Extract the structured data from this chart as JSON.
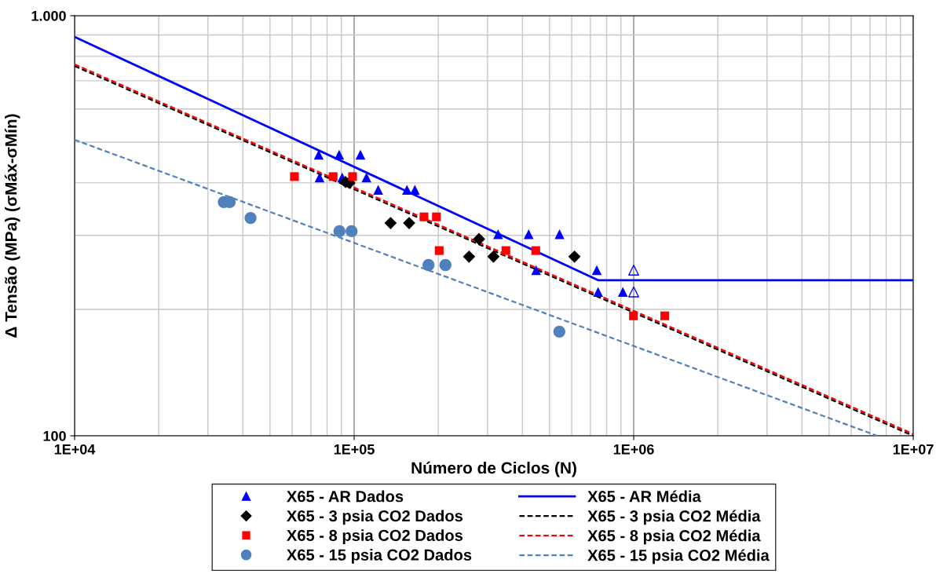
{
  "chart_data": {
    "type": "scatter",
    "xlabel": "Número de Ciclos (N)",
    "ylabel": "Δ Tensão (MPa) (σMáx-σMín)",
    "log": "xy",
    "grid": true,
    "legend": "bottom",
    "xlim": [
      10000,
      10000000
    ],
    "xticks": [
      {
        "value": 10000,
        "label": "1E+04"
      },
      {
        "value": 100000,
        "label": "1E+05"
      },
      {
        "value": 1000000,
        "label": "1E+06"
      },
      {
        "value": 10000000,
        "label": "1E+07"
      }
    ],
    "ylim": [
      100,
      1000
    ],
    "yticks": [
      {
        "value": 100,
        "label": "100"
      },
      {
        "value": 1000,
        "label": "1.000"
      }
    ],
    "series": [
      {
        "name": "X65 - AR Dados",
        "type": "scatter",
        "marker": "triangle",
        "color": "#0000ff",
        "x": [
          74700,
          88400,
          105300,
          75200,
          90600,
          110700,
          121900,
          154500,
          164900,
          327300,
          421000,
          543000,
          447500,
          737800,
          746000,
          914700
        ],
        "values": [
          467,
          467,
          467,
          412,
          412,
          412,
          385,
          385,
          385,
          302,
          302,
          302,
          248,
          248,
          220,
          220
        ]
      },
      {
        "name": "X65 - 3 psia CO2 Dados",
        "type": "scatter",
        "marker": "diamond",
        "color": "#000000",
        "x": [
          93100,
          96200,
          135000,
          157300,
          279700,
          257700,
          315000,
          614000
        ],
        "values": [
          402,
          400,
          321,
          321,
          294,
          267,
          267,
          267
        ]
      },
      {
        "name": "X65 - 8 psia CO2 Dados",
        "type": "scatter",
        "marker": "square",
        "color": "#ff0000",
        "x": [
          61150,
          84100,
          98700,
          177800,
          196900,
          201500,
          349000,
          446300,
          998000,
          1292000
        ],
        "values": [
          414,
          414,
          414,
          332,
          332,
          276,
          276,
          276,
          193,
          193
        ]
      },
      {
        "name": "X65 - 15 psia CO2 Dados",
        "type": "scatter",
        "marker": "circle",
        "color": "#4f81bd",
        "x": [
          34190,
          35850,
          42600,
          88600,
          97900,
          184500,
          212100,
          542000
        ],
        "values": [
          360,
          360,
          330,
          307,
          307,
          255,
          255,
          177
        ]
      },
      {
        "type": "scatter",
        "marker": "triangle",
        "color": "#0000ff",
        "x": [
          1000000,
          1000000
        ],
        "values": [
          248,
          220
        ]
      },
      {
        "name": "X65 - AR Média",
        "type": "line",
        "line_style": "solid",
        "color": "#0000ff",
        "x": [
          10000,
          748000,
          10000000
        ],
        "values": [
          890,
          234.5,
          234.5
        ]
      },
      {
        "name": "X65 - 3 psia CO2 Média",
        "type": "line",
        "line_style": "dashed",
        "color": "#000000",
        "x": [
          10000,
          10000000
        ],
        "values": [
          759,
          100
        ]
      },
      {
        "name": "X65 - 8 psia CO2 Média",
        "type": "line",
        "line_style": "dashed",
        "color": "#ff0000",
        "x": [
          10000,
          10000000
        ],
        "values": [
          766,
          101
        ]
      },
      {
        "name": "X65 - 15 psia CO2 Média",
        "type": "line",
        "line_style": "dashed",
        "color": "#4f81bd",
        "x": [
          10000,
          7430000
        ],
        "values": [
          506.6,
          100
        ]
      }
    ]
  }
}
